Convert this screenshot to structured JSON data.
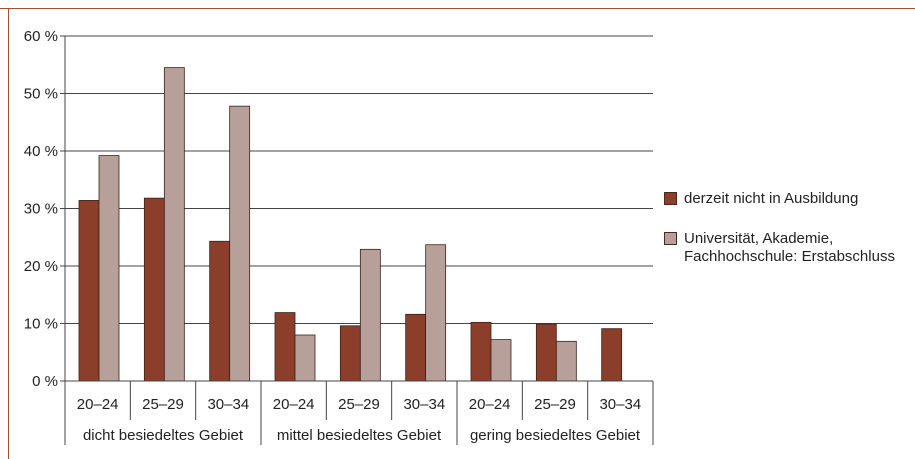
{
  "chart_data": {
    "type": "bar",
    "yticks": [
      "0 %",
      "10 %",
      "20 %",
      "30 %",
      "40 %",
      "50 %",
      "60 %"
    ],
    "ylim": [
      0,
      60
    ],
    "grid": true,
    "legend_position": "right",
    "categories": [
      "20–24",
      "25–29",
      "30–34",
      "20–24",
      "25–29",
      "30–34",
      "20–24",
      "25–29",
      "30–34"
    ],
    "groups": [
      "dicht besiedeltes Gebiet",
      "mittel besiedeltes Gebiet",
      "gering besiedeltes Gebiet"
    ],
    "series": [
      {
        "name": "derzeit nicht in Ausbildung",
        "color": "#8b3f2a",
        "values": [
          31.4,
          31.8,
          24.3,
          11.9,
          9.6,
          11.6,
          10.2,
          9.9,
          9.1
        ]
      },
      {
        "name": "Universität, Akademie, Fachhochschule: Erstabschluss",
        "name_lines": [
          "Universität, Akademie,",
          "Fachhochschule: Erstabschluss"
        ],
        "color": "#b8a09a",
        "values": [
          39.2,
          54.5,
          47.8,
          8.0,
          22.9,
          23.7,
          7.2,
          6.9,
          null
        ]
      }
    ]
  }
}
